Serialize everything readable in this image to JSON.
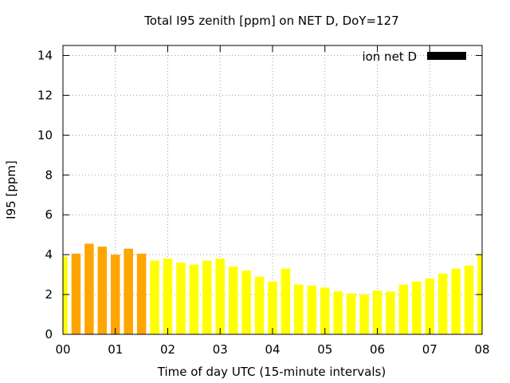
{
  "chart_data": {
    "type": "bar",
    "title": "Total I95 zenith [ppm] on NET D, DoY=127",
    "xlabel": "Time of day UTC (15-minute intervals)",
    "ylabel": "I95 [ppm]",
    "xlim": [
      0,
      8
    ],
    "ylim": [
      0,
      14.5
    ],
    "x_ticks": [
      {
        "value": 0,
        "label": "00"
      },
      {
        "value": 1,
        "label": "01"
      },
      {
        "value": 2,
        "label": "02"
      },
      {
        "value": 3,
        "label": "03"
      },
      {
        "value": 4,
        "label": "04"
      },
      {
        "value": 5,
        "label": "05"
      },
      {
        "value": 6,
        "label": "06"
      },
      {
        "value": 7,
        "label": "07"
      },
      {
        "value": 8,
        "label": "08"
      }
    ],
    "y_ticks": [
      {
        "value": 0,
        "label": "0"
      },
      {
        "value": 2,
        "label": "2"
      },
      {
        "value": 4,
        "label": "4"
      },
      {
        "value": 6,
        "label": "6"
      },
      {
        "value": 8,
        "label": "8"
      },
      {
        "value": 10,
        "label": "10"
      },
      {
        "value": 12,
        "label": "12"
      },
      {
        "value": 14,
        "label": "14"
      }
    ],
    "grid": true,
    "legend": {
      "placement": "top-right",
      "label": "ion net D",
      "color": "#000000"
    },
    "interval_hours": 0.25,
    "colors": {
      "high": "#ffa500",
      "low": "#ffff00"
    },
    "series": [
      {
        "x": [
          0,
          0.25,
          0.5,
          0.75,
          1,
          1.25,
          1.5,
          1.75,
          2,
          2.25,
          2.5,
          2.75,
          3,
          3.25,
          3.5,
          3.75,
          4,
          4.25,
          4.5,
          4.75,
          5,
          5.25,
          5.5,
          5.75,
          6,
          6.25,
          6.5,
          6.75,
          7,
          7.25,
          7.5,
          7.75,
          8
        ],
        "values": [
          3.9,
          4.05,
          4.55,
          4.4,
          4.0,
          4.3,
          4.05,
          3.7,
          3.8,
          3.6,
          3.5,
          3.7,
          3.8,
          3.4,
          3.2,
          2.9,
          2.65,
          3.3,
          2.5,
          2.45,
          2.35,
          2.15,
          2.05,
          2.0,
          2.2,
          2.15,
          2.5,
          2.65,
          2.8,
          3.05,
          3.3,
          3.45,
          4.0
        ],
        "colors": [
          "#ffff00",
          "#ffa500",
          "#ffa500",
          "#ffa500",
          "#ffa500",
          "#ffa500",
          "#ffa500",
          "#ffff00",
          "#ffff00",
          "#ffff00",
          "#ffff00",
          "#ffff00",
          "#ffff00",
          "#ffff00",
          "#ffff00",
          "#ffff00",
          "#ffff00",
          "#ffff00",
          "#ffff00",
          "#ffff00",
          "#ffff00",
          "#ffff00",
          "#ffff00",
          "#ffff00",
          "#ffff00",
          "#ffff00",
          "#ffff00",
          "#ffff00",
          "#ffff00",
          "#ffff00",
          "#ffff00",
          "#ffff00",
          "#ffff00"
        ]
      }
    ]
  }
}
